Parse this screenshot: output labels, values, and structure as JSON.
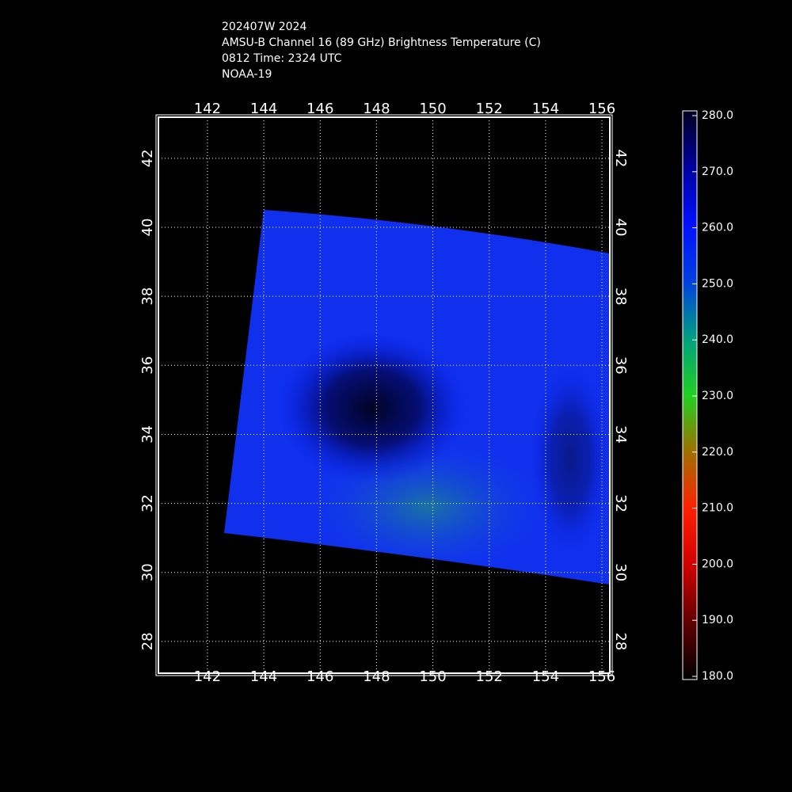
{
  "header": {
    "lines": [
      "202407W 2024",
      "AMSU-B Channel 16 (89 GHz) Brightness Temperature (C)",
      "0812 Time: 2324 UTC",
      "NOAA-19"
    ]
  },
  "map": {
    "xlim": [
      140.26,
      156.28
    ],
    "ylim": [
      27.08,
      43.19
    ],
    "xticks": [
      142,
      144,
      146,
      148,
      150,
      152,
      154,
      156
    ],
    "yticks": [
      28,
      30,
      32,
      34,
      36,
      38,
      40,
      42
    ],
    "grid": true
  },
  "colorbar": {
    "lim": [
      180,
      280
    ],
    "ticks": [
      {
        "value": 280,
        "label": "280.0"
      },
      {
        "value": 270,
        "label": "270.0"
      },
      {
        "value": 260,
        "label": "260.0"
      },
      {
        "value": 250,
        "label": "250.0"
      },
      {
        "value": 240,
        "label": "240.0"
      },
      {
        "value": 230,
        "label": "230.0"
      },
      {
        "value": 220,
        "label": "220.0"
      },
      {
        "value": 210,
        "label": "210.0"
      },
      {
        "value": 200,
        "label": "200.0"
      },
      {
        "value": 190,
        "label": "190.0"
      },
      {
        "value": 180,
        "label": "180.0"
      }
    ]
  }
}
